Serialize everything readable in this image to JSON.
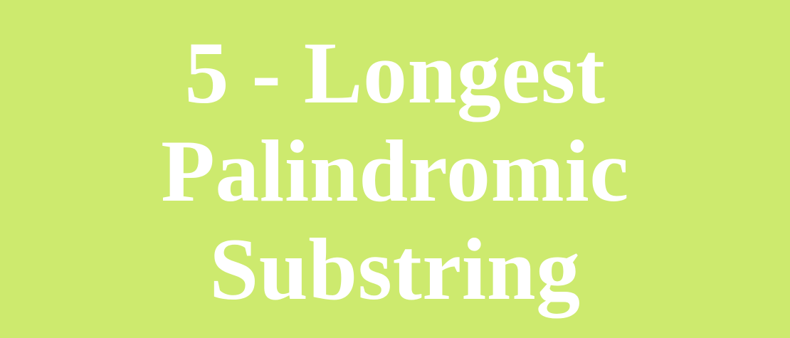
{
  "banner": {
    "background_color": "#cdea6e",
    "text_color": "#ffffff",
    "title_lines": [
      "5 - Longest",
      "Palindromic",
      "Substring"
    ]
  }
}
